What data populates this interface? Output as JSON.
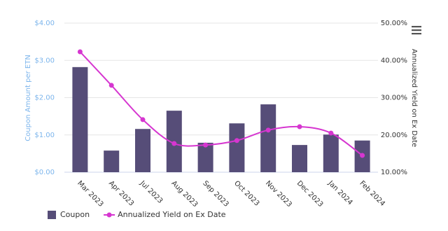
{
  "chart_data": {
    "type": "combo",
    "categories": [
      "Mar 2023",
      "Apr 2023",
      "Jul 2023",
      "Aug 2023",
      "Sep 2023",
      "Oct 2023",
      "Nov 2023",
      "Dec 2023",
      "Jan 2024",
      "Feb 2024"
    ],
    "series": [
      {
        "name": "Coupon",
        "type": "bar",
        "color": "#564d78",
        "values": [
          2.82,
          0.58,
          1.16,
          1.65,
          0.79,
          1.31,
          1.82,
          0.73,
          1.01,
          0.85
        ]
      },
      {
        "name": "Annualized Yield on Ex Date",
        "type": "line",
        "axis": "y2",
        "color": "#d636d0",
        "values": [
          42.3,
          33.3,
          24.1,
          17.7,
          17.3,
          18.5,
          21.3,
          22.2,
          20.5,
          14.5
        ]
      }
    ],
    "y_label": "Coupon Amount per ETN",
    "y2_label": "Annualized Yield on Ex Date",
    "ylim": [
      0,
      4
    ],
    "yticks": [
      {
        "value": 0,
        "label": "$0.00"
      },
      {
        "value": 1,
        "label": "$1.00"
      },
      {
        "value": 2,
        "label": "$2.00"
      },
      {
        "value": 3,
        "label": "$3.00"
      },
      {
        "value": 4,
        "label": "$4.00"
      }
    ],
    "y2lim": [
      10,
      50
    ],
    "y2ticks": [
      {
        "value": 10,
        "label": "10.00%"
      },
      {
        "value": 20,
        "label": "20.00%"
      },
      {
        "value": 30,
        "label": "30.00%"
      },
      {
        "value": 40,
        "label": "40.00%"
      },
      {
        "value": 50,
        "label": "50.00%"
      }
    ],
    "grid": true
  }
}
